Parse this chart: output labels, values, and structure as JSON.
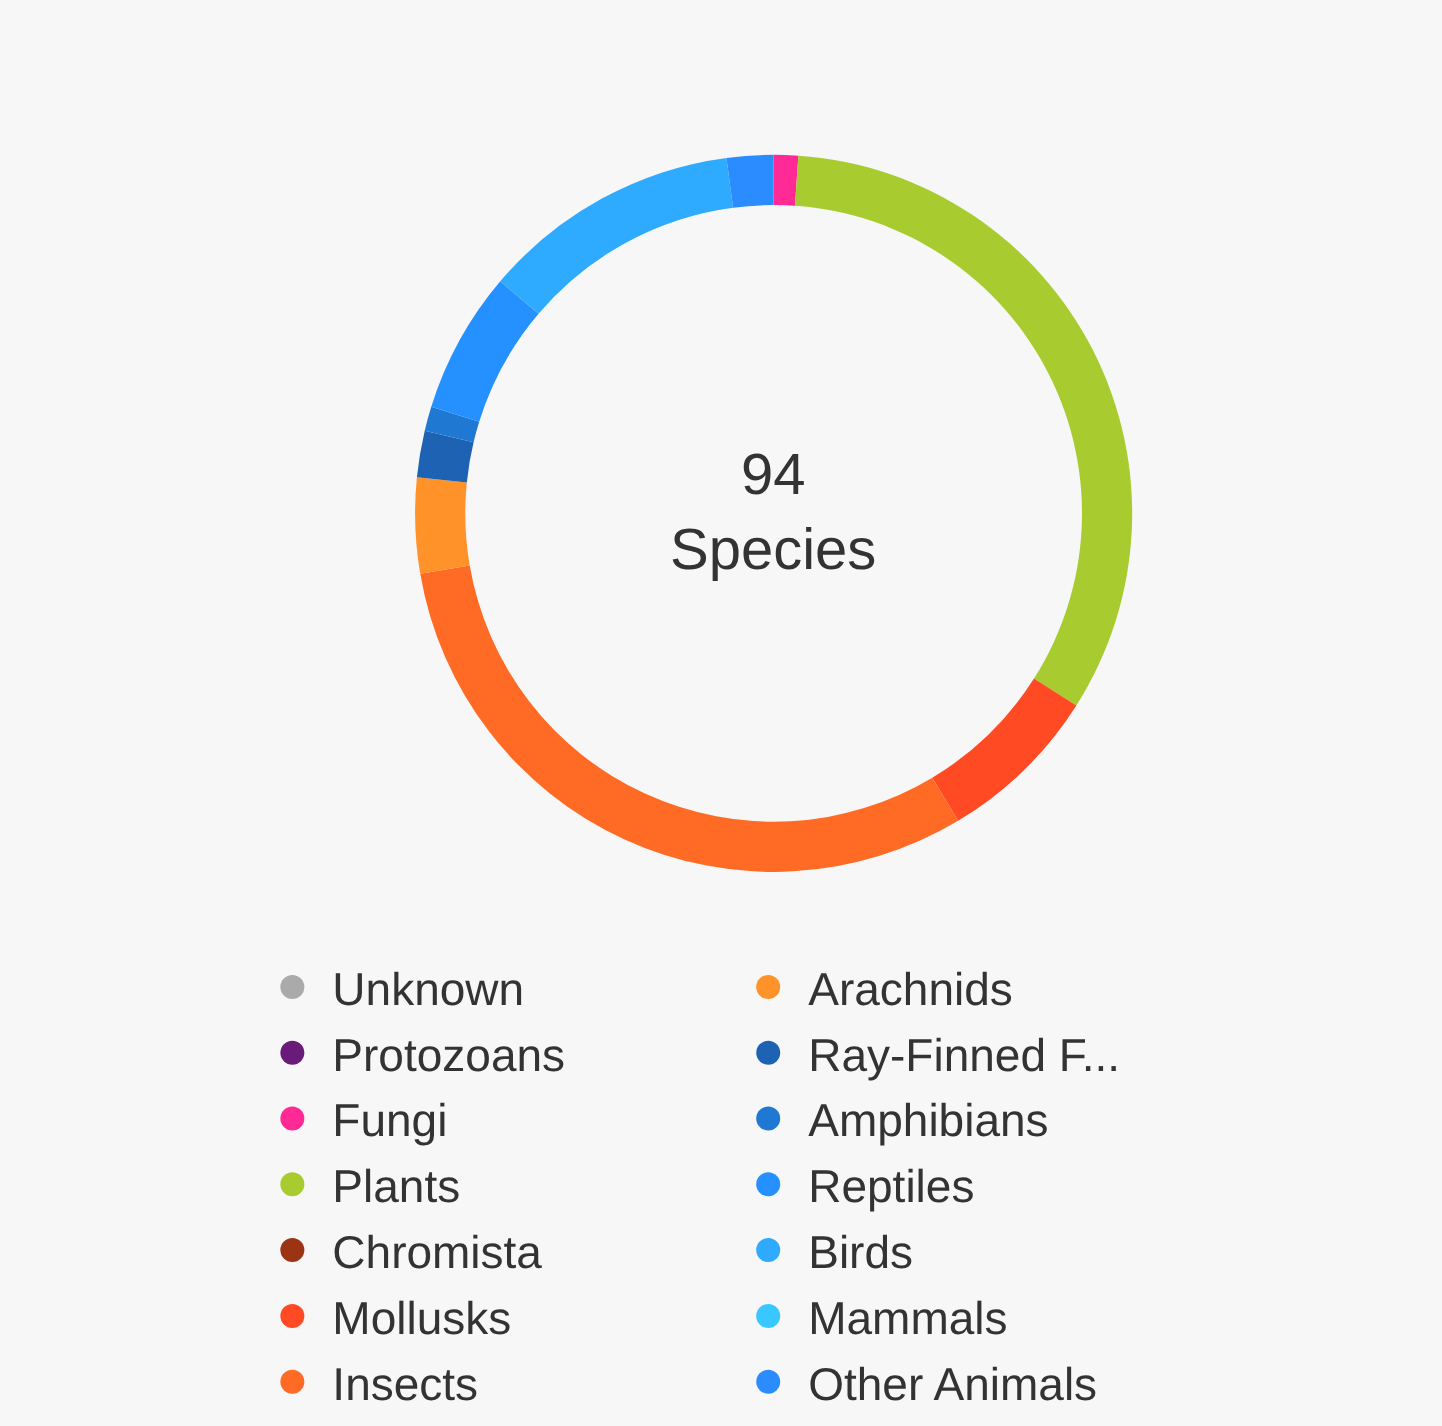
{
  "chart_data": {
    "type": "donut",
    "categories": [
      "Unknown",
      "Protozoans",
      "Fungi",
      "Plants",
      "Chromista",
      "Mollusks",
      "Insects",
      "Arachnids",
      "Ray-Finned F...",
      "Amphibians",
      "Reptiles",
      "Birds",
      "Mammals",
      "Other Animals"
    ],
    "values": [
      0,
      0,
      1.1,
      32.9,
      0,
      7.4,
      30.9,
      4.3,
      2.1,
      1.1,
      6.4,
      11.7,
      0,
      2.1
    ],
    "colors": [
      "#aaaaaa",
      "#6a1b7a",
      "#ff2a96",
      "#a8cc2f",
      "#9a3412",
      "#ff4a24",
      "#ff6a24",
      "#ff9228",
      "#1e63b3",
      "#1f78d1",
      "#2590ff",
      "#2eaafe",
      "#38c8ff",
      "#2b8cff"
    ],
    "annotations": [
      "94\nSpecies"
    ],
    "legend": "bottom"
  }
}
